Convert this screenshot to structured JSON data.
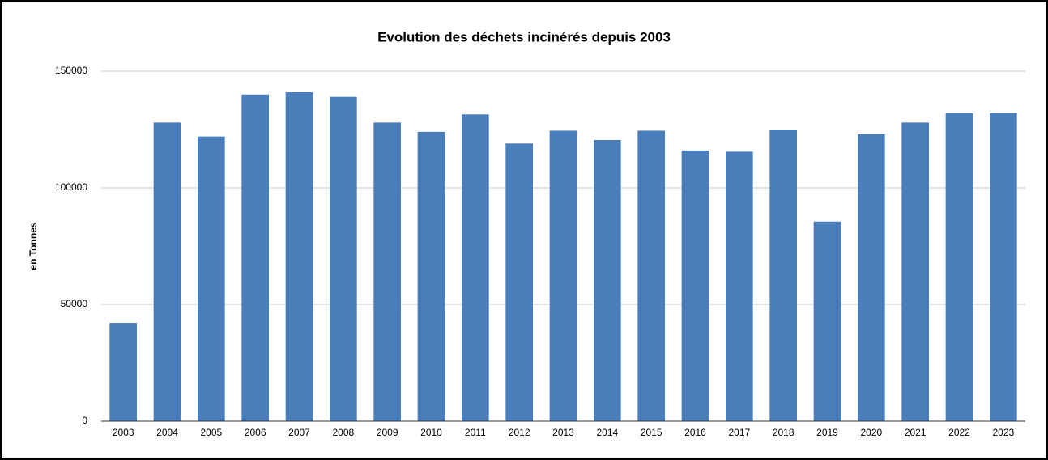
{
  "chart_data": {
    "type": "bar",
    "title": "Evolution des déchets incinérés depuis 2003",
    "y_label": "en Tonnes",
    "categories": [
      "2003",
      "2004",
      "2005",
      "2006",
      "2007",
      "2008",
      "2009",
      "2010",
      "2011",
      "2012",
      "2013",
      "2014",
      "2015",
      "2016",
      "2017",
      "2018",
      "2019",
      "2020",
      "2021",
      "2022",
      "2023"
    ],
    "values": [
      42000,
      128000,
      122000,
      140000,
      141000,
      139000,
      128000,
      124000,
      131500,
      119000,
      124500,
      120500,
      124500,
      116000,
      115500,
      125000,
      85500,
      123000,
      128000,
      132000,
      132000
    ],
    "color": "#4a7ebb",
    "ylim": [
      0,
      150000
    ],
    "yticks": [
      0,
      50000,
      100000,
      150000
    ],
    "grid": true
  }
}
